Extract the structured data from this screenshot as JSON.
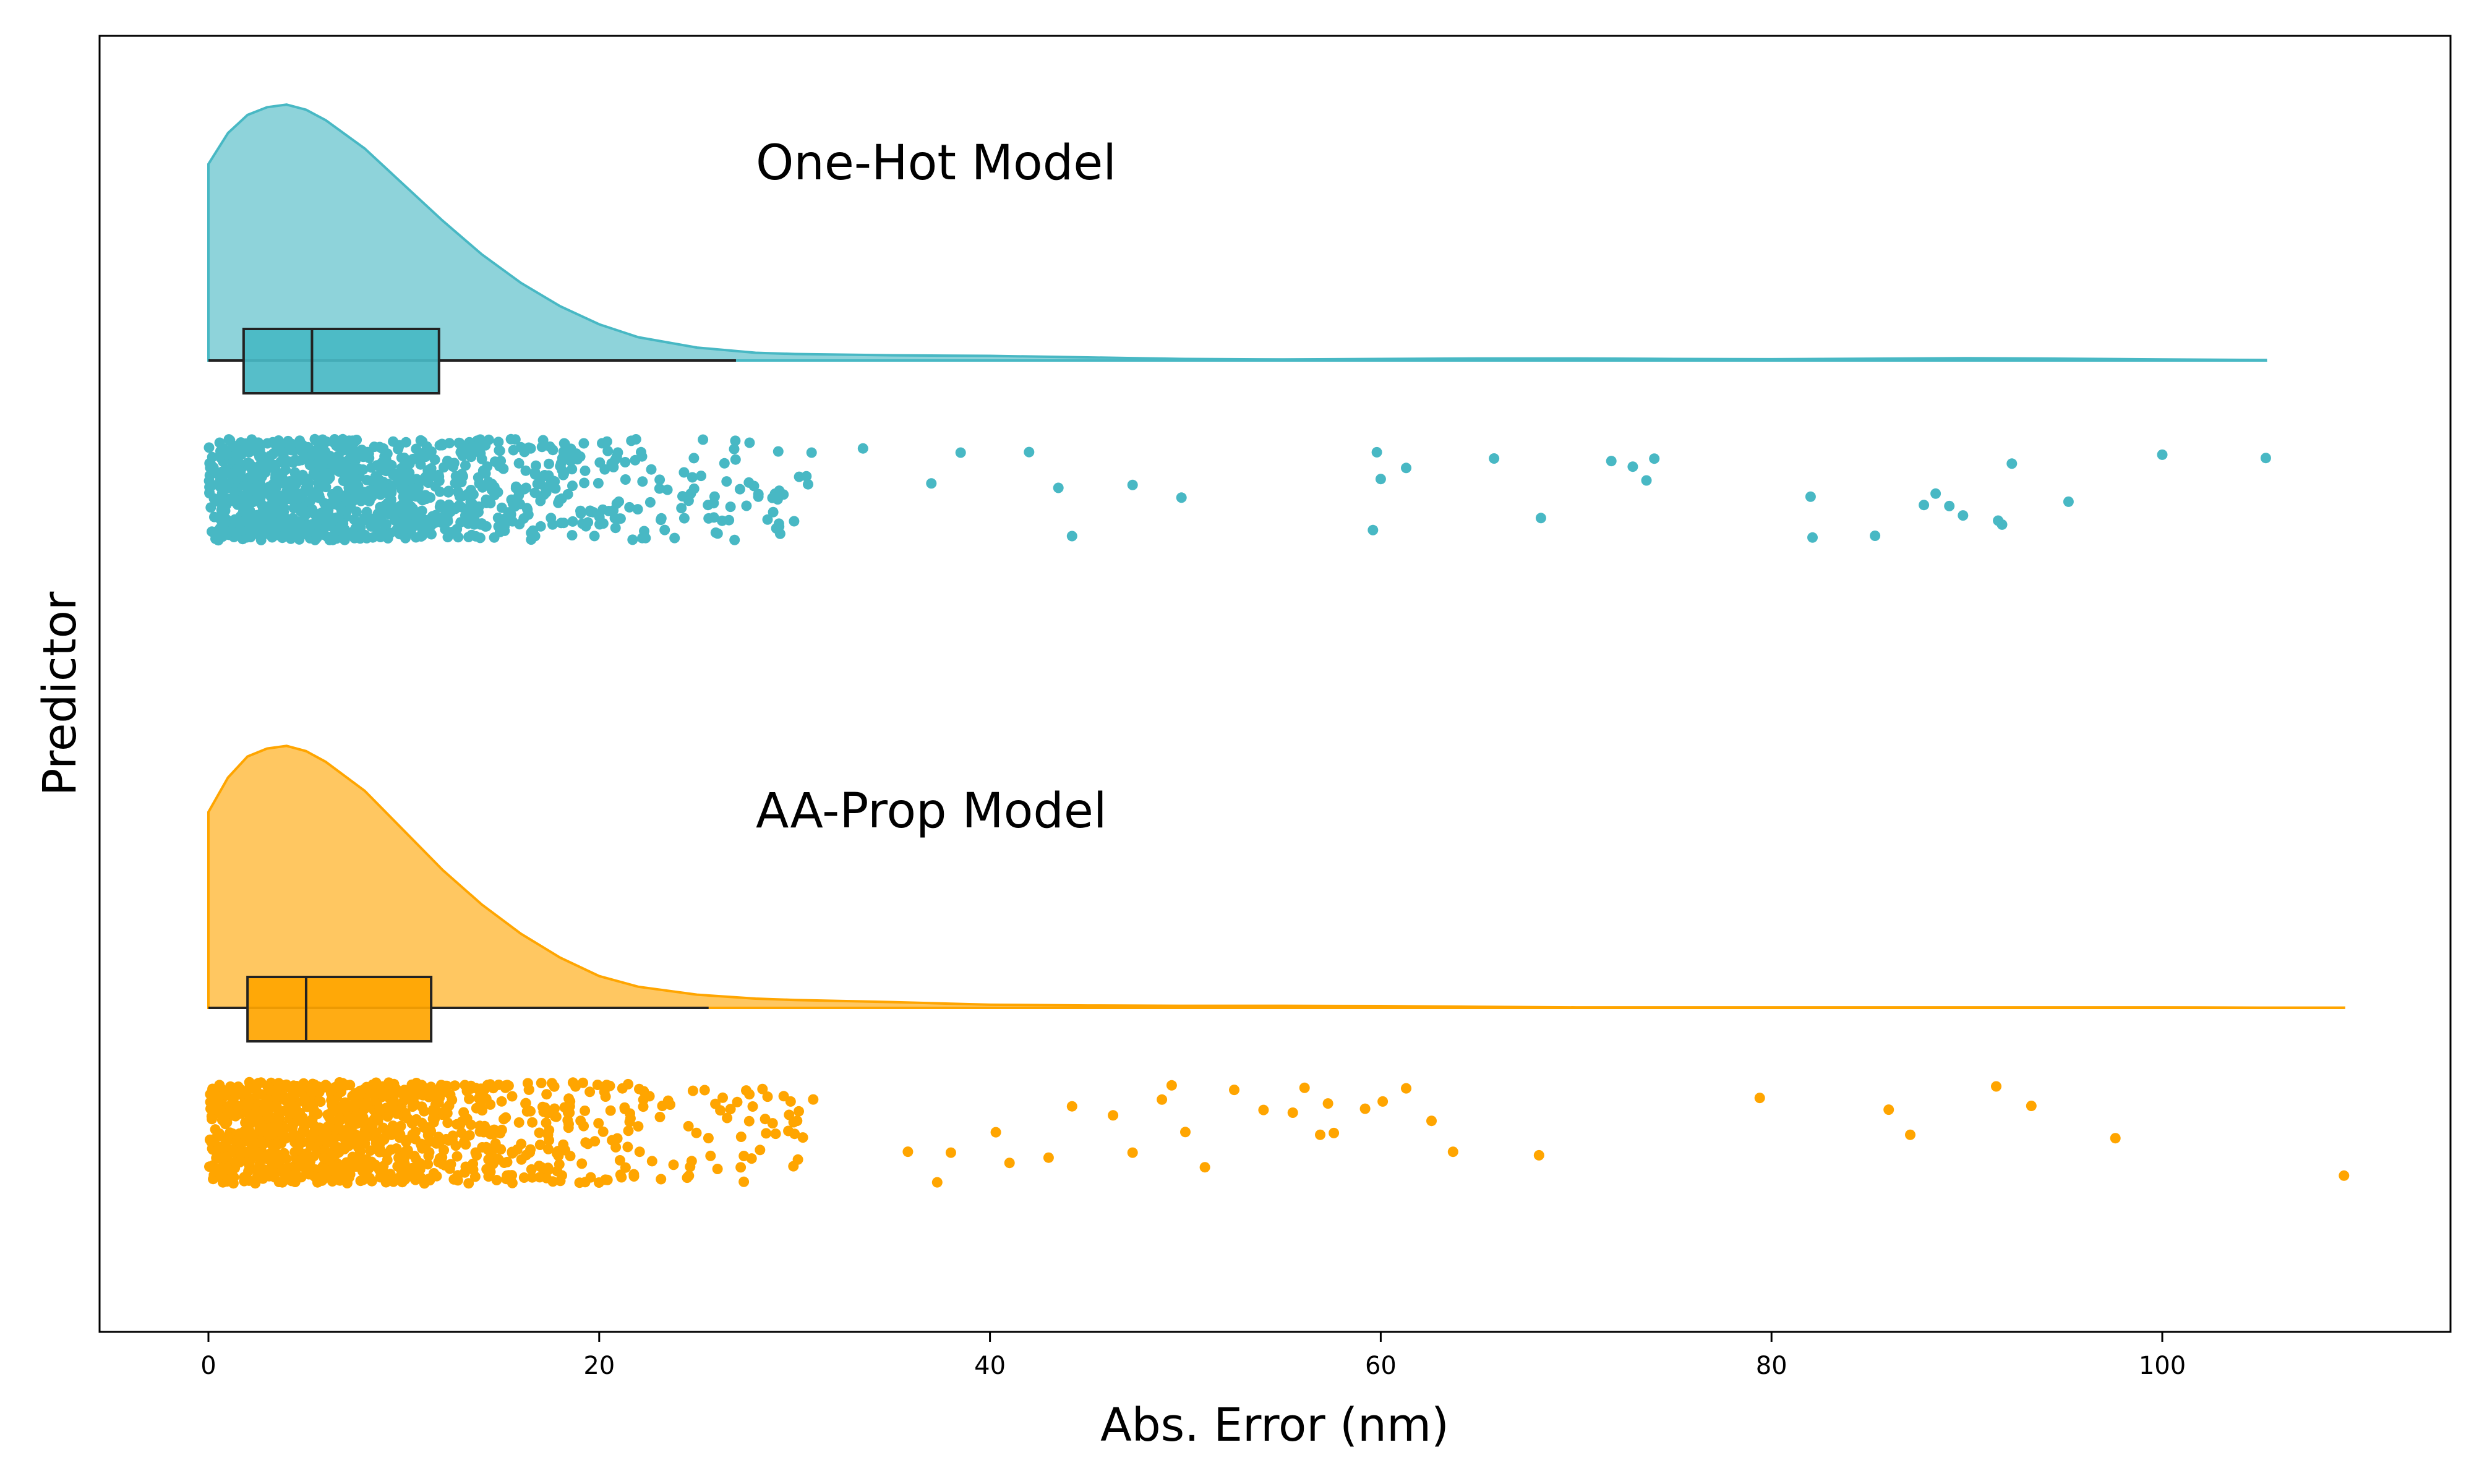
{
  "chart_data": {
    "type": "raincloud",
    "title": "",
    "xlabel": "Abs. Error (nm)",
    "ylabel": "Predictor",
    "xlim": [
      -5.5,
      114.5
    ],
    "xticks": [
      0,
      20,
      40,
      60,
      80,
      100
    ],
    "grid": false,
    "series": [
      {
        "name": "One-Hot Model",
        "color": "#48B8C4",
        "box": {
          "whisker_low": 0,
          "q1": 1.8,
          "median": 5.3,
          "q3": 11.8,
          "whisker_high": 27.0
        },
        "density": {
          "x": [
            0,
            1,
            2,
            3,
            4,
            5,
            6,
            8,
            10,
            12,
            14,
            16,
            18,
            20,
            22,
            25,
            28,
            30,
            35,
            40,
            45,
            50,
            55,
            60,
            65,
            70,
            75,
            80,
            85,
            90,
            95,
            100,
            105.3
          ],
          "y": [
            0.76,
            0.88,
            0.95,
            0.98,
            0.99,
            0.97,
            0.93,
            0.82,
            0.68,
            0.54,
            0.41,
            0.3,
            0.21,
            0.14,
            0.09,
            0.05,
            0.03,
            0.025,
            0.02,
            0.018,
            0.012,
            0.006,
            0.004,
            0.006,
            0.008,
            0.008,
            0.006,
            0.005,
            0.007,
            0.009,
            0.007,
            0.004,
            0.002
          ]
        },
        "outliers": [
          33.5,
          37.0,
          38.5,
          42.0,
          43.5,
          44.2,
          47.3,
          49.8,
          59.6,
          59.8,
          60.0,
          61.3,
          65.8,
          68.2,
          71.8,
          72.9,
          73.6,
          74.0,
          82.0,
          82.1,
          85.3,
          87.8,
          88.4,
          89.1,
          89.8,
          91.6,
          91.8,
          92.3,
          95.2,
          100.0,
          105.3
        ]
      },
      {
        "name": "AA-Prop Model",
        "color": "#FFA500",
        "box": {
          "whisker_low": 0,
          "q1": 2.0,
          "median": 5.0,
          "q3": 11.4,
          "whisker_high": 25.6
        },
        "density": {
          "x": [
            0,
            1,
            2,
            3,
            4,
            5,
            6,
            8,
            10,
            12,
            14,
            16,
            18,
            20,
            22,
            25,
            28,
            30,
            35,
            40,
            45,
            50,
            55,
            60,
            65,
            70,
            75,
            80,
            85,
            90,
            95,
            100,
            105,
            109.3
          ],
          "y": [
            0.74,
            0.87,
            0.95,
            0.98,
            0.99,
            0.97,
            0.93,
            0.82,
            0.67,
            0.52,
            0.39,
            0.28,
            0.19,
            0.12,
            0.08,
            0.05,
            0.035,
            0.03,
            0.022,
            0.012,
            0.009,
            0.008,
            0.008,
            0.007,
            0.004,
            0.002,
            0.002,
            0.002,
            0.002,
            0.002,
            0.002,
            0.002,
            0.001,
            0.001
          ]
        },
        "outliers": [
          35.8,
          37.3,
          38.0,
          40.3,
          41.0,
          43.0,
          44.2,
          46.3,
          47.3,
          48.8,
          49.3,
          50.0,
          51.0,
          52.5,
          54.0,
          55.5,
          56.1,
          56.9,
          57.3,
          57.6,
          59.2,
          60.1,
          61.3,
          62.6,
          63.7,
          68.1,
          79.4,
          86.0,
          87.1,
          91.5,
          93.3,
          97.6,
          109.3
        ]
      }
    ]
  }
}
